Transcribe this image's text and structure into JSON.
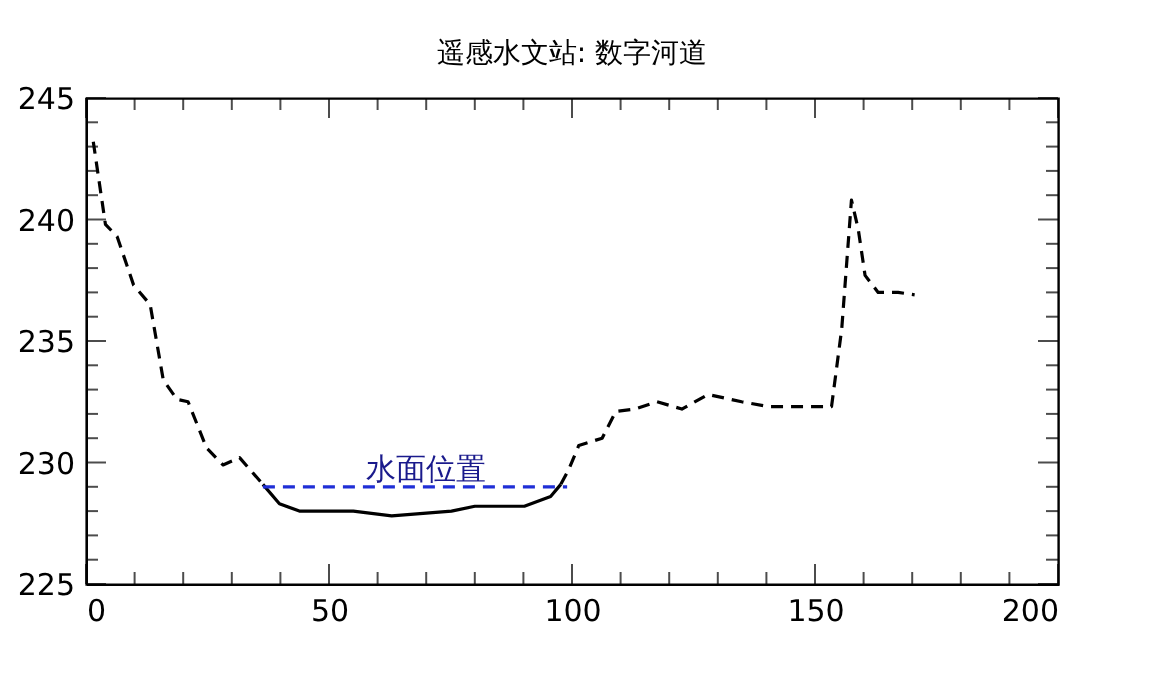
{
  "chart_data": {
    "type": "line",
    "title": "遥感水文站: 数字河道",
    "xlim": [
      0,
      200
    ],
    "ylim": [
      225,
      245
    ],
    "xticks": [
      0,
      {
        "value": 10,
        "label": null
      },
      {
        "value": 20,
        "label": null
      },
      {
        "value": 30,
        "label": null
      },
      {
        "value": 40,
        "label": null
      },
      50,
      {
        "value": 60,
        "label": null
      },
      {
        "value": 70,
        "label": null
      },
      {
        "value": 80,
        "label": null
      },
      {
        "value": 90,
        "label": null
      },
      100,
      {
        "value": 110,
        "label": null
      },
      {
        "value": 120,
        "label": null
      },
      {
        "value": 130,
        "label": null
      },
      {
        "value": 140,
        "label": null
      },
      150,
      {
        "value": 160,
        "label": null
      },
      {
        "value": 170,
        "label": null
      },
      {
        "value": 180,
        "label": null
      },
      {
        "value": 190,
        "label": null
      },
      200
    ],
    "yticks": [
      225,
      {
        "value": 226,
        "label": null
      },
      {
        "value": 227,
        "label": null
      },
      {
        "value": 228,
        "label": null
      },
      {
        "value": 229,
        "label": null
      },
      230,
      {
        "value": 231,
        "label": null
      },
      {
        "value": 232,
        "label": null
      },
      {
        "value": 233,
        "label": null
      },
      {
        "value": 234,
        "label": null
      },
      235,
      {
        "value": 236,
        "label": null
      },
      {
        "value": 237,
        "label": null
      },
      {
        "value": 238,
        "label": null
      },
      {
        "value": 239,
        "label": null
      },
      240,
      {
        "value": 241,
        "label": null
      },
      {
        "value": 242,
        "label": null
      },
      {
        "value": 243,
        "label": null
      },
      {
        "value": 244,
        "label": null
      },
      245
    ],
    "grid": false,
    "marker": "none",
    "series": [
      {
        "color": "#000000",
        "line_style": "dashed",
        "x": [
          1.5,
          4,
          6.4,
          9.8,
          13.2,
          15.9,
          18.7,
          21,
          24.8,
          28.2,
          31.6,
          36.4
        ],
        "values": [
          243.2,
          239.8,
          239.3,
          237.3,
          236.5,
          233.4,
          232.6,
          232.5,
          230.6,
          229.9,
          230.2,
          229.1
        ]
      },
      {
        "color": "#000000",
        "line_style": "solid",
        "x": [
          36.4,
          39.8,
          43.9,
          55,
          62.9,
          75.2,
          80,
          90.2,
          95.6,
          97.7
        ],
        "values": [
          229.1,
          228.3,
          228,
          228,
          227.8,
          228,
          228.2,
          228.2,
          228.6,
          229.1
        ]
      },
      {
        "color": "#000000",
        "line_style": "dashed",
        "x": [
          97.7,
          99.3,
          101.4,
          106.2,
          109,
          113,
          117.5,
          122.6,
          128,
          134.9,
          140.4,
          153.4,
          155.5,
          157.5,
          158.9,
          160.3,
          163,
          167.1,
          170.5
        ],
        "values": [
          229.1,
          229.7,
          230.7,
          231,
          232.1,
          232.2,
          232.5,
          232.2,
          232.8,
          232.5,
          232.3,
          232.3,
          235.5,
          240.8,
          239.6,
          237.7,
          237,
          237,
          236.9
        ]
      },
      {
        "color": "#1f2fd6",
        "line_style": "dashed",
        "x": [
          36.4,
          99
        ],
        "values": [
          229,
          229
        ]
      }
    ],
    "annotations": [
      {
        "text": "水面位置",
        "x": 70,
        "y": 229
      }
    ]
  }
}
